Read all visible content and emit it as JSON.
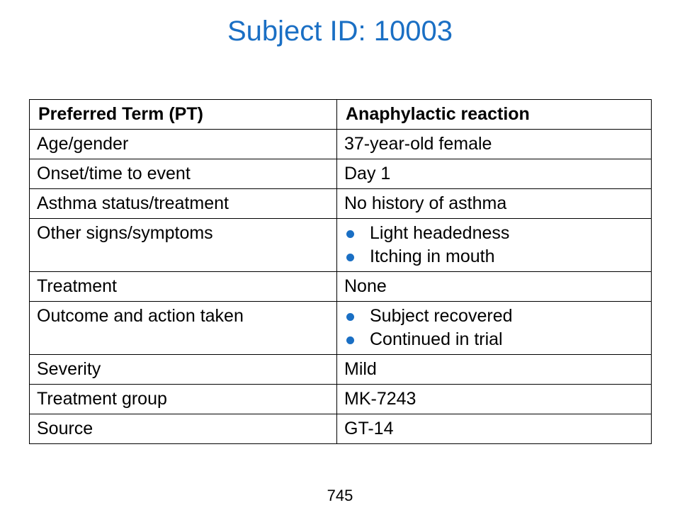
{
  "title": "Subject ID: 10003",
  "table": {
    "header": {
      "col1": "Preferred Term (PT)",
      "col2": "Anaphylactic reaction"
    },
    "rows": [
      {
        "label": "Age/gender",
        "value": "37-year-old female"
      },
      {
        "label": "Onset/time to event",
        "value": "Day 1"
      },
      {
        "label": "Asthma status/treatment",
        "value": "No history of asthma"
      },
      {
        "label": "Other signs/symptoms",
        "bullets": [
          "Light headedness",
          "Itching in mouth"
        ]
      },
      {
        "label": "Treatment",
        "value": "None"
      },
      {
        "label": "Outcome and action taken",
        "bullets": [
          "Subject recovered",
          "Continued in trial"
        ]
      },
      {
        "label": "Severity",
        "value": "Mild"
      },
      {
        "label": "Treatment group",
        "value": "MK-7243"
      },
      {
        "label": "Source",
        "value": "GT-14"
      }
    ]
  },
  "page_number": "745",
  "colors": {
    "title": "#1a6fc4",
    "bullet": "#1a6fc4",
    "border": "#000000"
  }
}
